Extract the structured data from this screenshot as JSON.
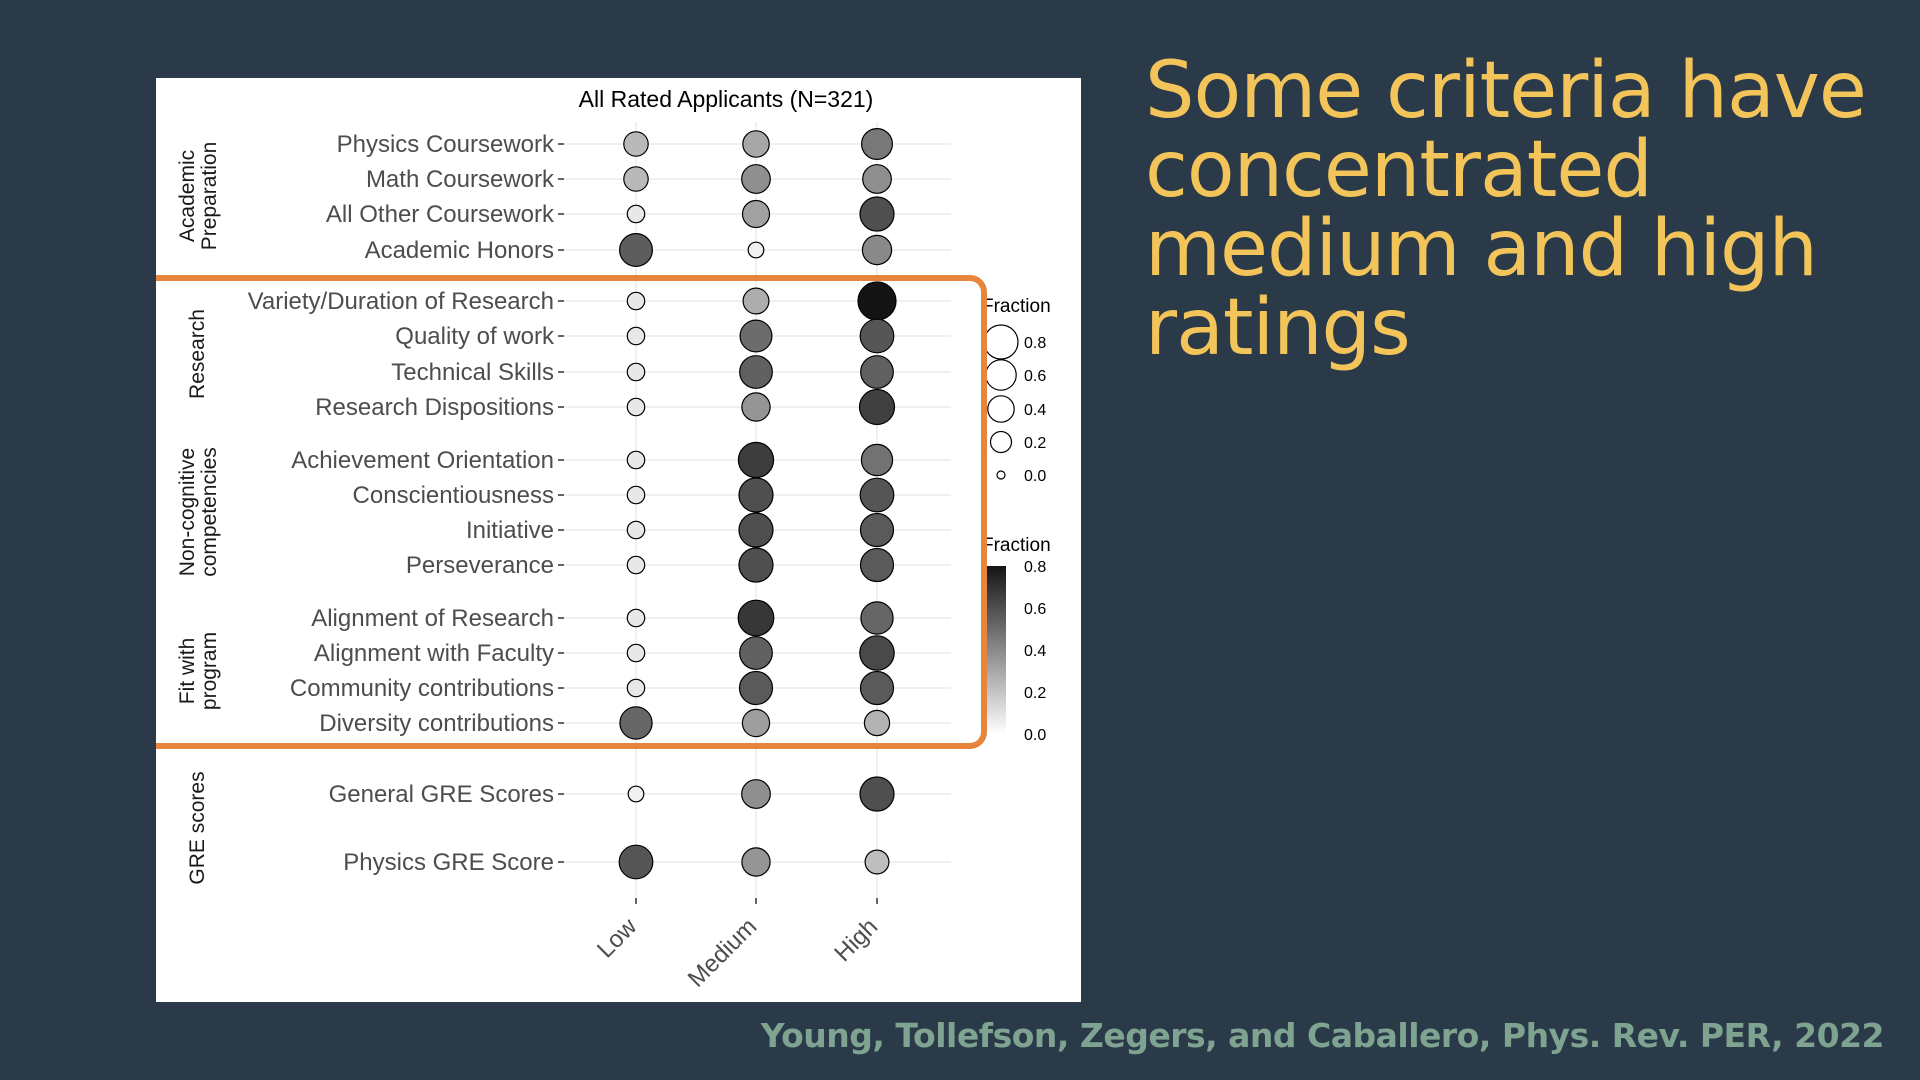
{
  "slide": {
    "title": "Some criteria have concentrated medium and high ratings",
    "citation": "Young, Tollefson, Zegers, and Caballero, Phys. Rev. PER, 2022",
    "colors": {
      "background": "#2b3a48",
      "title": "#f2c45a",
      "citation": "#7fa391",
      "highlight_box": "#e8853d"
    }
  },
  "chart_data": {
    "type": "scatter",
    "title": "All Rated Applicants (N=321)",
    "x_categories": [
      "Low",
      "Medium",
      "High"
    ],
    "groups": [
      {
        "name": "Academic\nPreparation",
        "rows": [
          {
            "label": "Physics Coursework",
            "values": [
              0.24,
              0.3,
              0.46
            ]
          },
          {
            "label": "Math Coursework",
            "values": [
              0.24,
              0.38,
              0.38
            ]
          },
          {
            "label": "All Other Coursework",
            "values": [
              0.08,
              0.32,
              0.6
            ]
          },
          {
            "label": "Academic Honors",
            "values": [
              0.55,
              0.05,
              0.4
            ]
          }
        ]
      },
      {
        "name": "Research",
        "rows": [
          {
            "label": "Variety/Duration of Research",
            "values": [
              0.08,
              0.28,
              0.8
            ]
          },
          {
            "label": "Quality of work",
            "values": [
              0.08,
              0.5,
              0.58
            ]
          },
          {
            "label": "Technical Skills",
            "values": [
              0.08,
              0.54,
              0.54
            ]
          },
          {
            "label": "Research Dispositions",
            "values": [
              0.08,
              0.36,
              0.65
            ]
          }
        ]
      },
      {
        "name": "Non-cognitive\ncompetencies",
        "rows": [
          {
            "label": "Achievement Orientation",
            "values": [
              0.08,
              0.66,
              0.48
            ]
          },
          {
            "label": "Conscientiousness",
            "values": [
              0.08,
              0.6,
              0.58
            ]
          },
          {
            "label": "Initiative",
            "values": [
              0.08,
              0.6,
              0.56
            ]
          },
          {
            "label": "Perseverance",
            "values": [
              0.08,
              0.6,
              0.56
            ]
          }
        ]
      },
      {
        "name": "Fit with\nprogram",
        "rows": [
          {
            "label": "Alignment of Research",
            "values": [
              0.08,
              0.68,
              0.52
            ]
          },
          {
            "label": "Alignment with Faculty",
            "values": [
              0.08,
              0.54,
              0.62
            ]
          },
          {
            "label": "Community contributions",
            "values": [
              0.08,
              0.56,
              0.56
            ]
          },
          {
            "label": "Diversity contributions",
            "values": [
              0.52,
              0.33,
              0.26
            ]
          }
        ]
      },
      {
        "name": "GRE scores",
        "rows": [
          {
            "label": "General GRE Scores",
            "values": [
              0.05,
              0.38,
              0.6
            ]
          },
          {
            "label": "Physics GRE Score",
            "values": [
              0.58,
              0.36,
              0.22
            ]
          }
        ]
      }
    ],
    "size_legend": {
      "title": "Fraction",
      "levels": [
        0.8,
        0.6,
        0.4,
        0.2,
        0.0
      ],
      "labels": [
        "0.8",
        "0.6",
        "0.4",
        "0.2",
        "0.0"
      ]
    },
    "color_legend": {
      "title": "Fraction",
      "ticks": [
        0.8,
        0.6,
        0.4,
        0.2,
        0.0
      ],
      "labels": [
        "0.8",
        "0.6",
        "0.4",
        "0.2",
        "0.0"
      ],
      "low_color": "#ffffff",
      "high_color": "#141414"
    },
    "grid": true,
    "highlight": "Research, Non-cognitive competencies, Fit with program"
  }
}
